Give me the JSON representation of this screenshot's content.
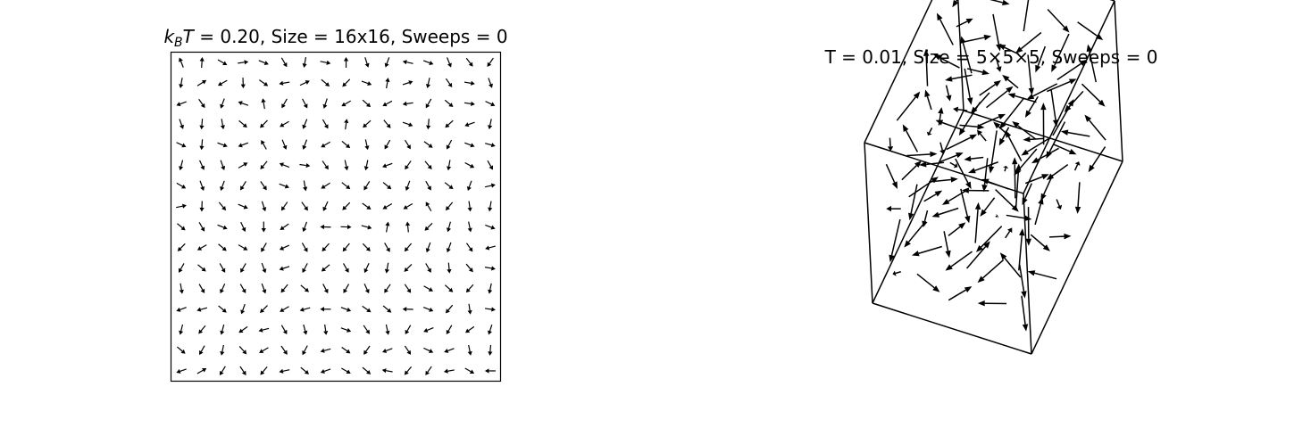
{
  "figure": {
    "panels": [
      {
        "title_prefix": "k",
        "title_sub": "B",
        "title_var": "T",
        "title_rest": " = 0.20, Size = 16x16, Sweeps = 0"
      },
      {
        "title": "T = 0.01, Size = 5×5×5, Sweeps = 0"
      }
    ]
  },
  "chart_data": [
    {
      "type": "quiver",
      "title": "k_B T = 0.20, Size = 16x16, Sweeps = 0",
      "temperature": 0.2,
      "size": [
        16,
        16
      ],
      "sweeps": 0,
      "xlim": [
        0,
        16
      ],
      "ylim": [
        0,
        16
      ],
      "angles_deg": [
        [
          112,
          86,
          -30,
          8,
          -22,
          -60,
          -100,
          -12,
          90,
          -72,
          -110,
          168,
          -20,
          -68,
          -52,
          -125
        ],
        [
          -100,
          32,
          -150,
          -88,
          -35,
          -170,
          25,
          -40,
          -135,
          -20,
          80,
          18,
          -102,
          -55,
          -10,
          -70
        ],
        [
          -160,
          -55,
          -110,
          160,
          100,
          -120,
          -62,
          -108,
          -150,
          -42,
          -152,
          -172,
          -120,
          -40,
          -8,
          -25
        ],
        [
          -70,
          -95,
          -80,
          -40,
          -135,
          -150,
          -112,
          -60,
          82,
          -138,
          -50,
          -20,
          -95,
          -138,
          -160,
          -102
        ],
        [
          -25,
          -95,
          -20,
          -160,
          120,
          -68,
          -110,
          -150,
          -40,
          -78,
          -120,
          -58,
          -36,
          -118,
          -20,
          -15
        ],
        [
          -105,
          -65,
          -70,
          30,
          -130,
          158,
          -8,
          -55,
          -78,
          -102,
          -160,
          -125,
          -50,
          -100,
          -28,
          -60
        ],
        [
          -30,
          -70,
          -110,
          -122,
          -55,
          -20,
          -80,
          -148,
          -38,
          -122,
          -40,
          -110,
          -60,
          -38,
          -110,
          12
        ],
        [
          12,
          -92,
          -50,
          -22,
          -72,
          -125,
          -54,
          -115,
          -135,
          -35,
          -150,
          -150,
          120,
          -130,
          -82,
          -100
        ],
        [
          -40,
          -60,
          -22,
          -65,
          -90,
          -145,
          -110,
          178,
          -2,
          -15,
          80,
          96,
          -135,
          -105,
          -78,
          -20
        ],
        [
          -135,
          -150,
          -40,
          -30,
          -120,
          -155,
          -60,
          -132,
          -130,
          -45,
          -60,
          -130,
          -110,
          -110,
          -55,
          -165
        ],
        [
          -120,
          -40,
          -60,
          -120,
          -70,
          -162,
          -118,
          -140,
          -60,
          -115,
          -100,
          -135,
          -60,
          -85,
          -50,
          -10
        ],
        [
          -80,
          -60,
          -115,
          -60,
          -70,
          -130,
          -40,
          -62,
          -120,
          -65,
          -125,
          -55,
          -30,
          -42,
          -132,
          -102
        ],
        [
          -160,
          -165,
          -40,
          -110,
          -135,
          -150,
          -165,
          180,
          -20,
          -35,
          -40,
          178,
          -22,
          -130,
          -82,
          -8
        ],
        [
          -104,
          -130,
          -105,
          -145,
          -165,
          -60,
          -75,
          -82,
          -20,
          -55,
          -78,
          -120,
          -158,
          -120,
          -145,
          -108
        ],
        [
          -40,
          -120,
          -102,
          -48,
          -150,
          -55,
          -118,
          -165,
          -35,
          -125,
          -160,
          -56,
          -25,
          -160,
          -78,
          -95
        ],
        [
          -160,
          30,
          -122,
          -56,
          -130,
          -168,
          -40,
          -160,
          -30,
          -40,
          170,
          -130,
          -125,
          -170,
          -30,
          -180
        ]
      ]
    },
    {
      "type": "quiver3d",
      "title": "T = 0.01, Size = 5×5×5, Sweeps = 0",
      "temperature": 0.01,
      "size": [
        5,
        5,
        5
      ],
      "sweeps": 0,
      "spins_seed": 4217
    }
  ]
}
